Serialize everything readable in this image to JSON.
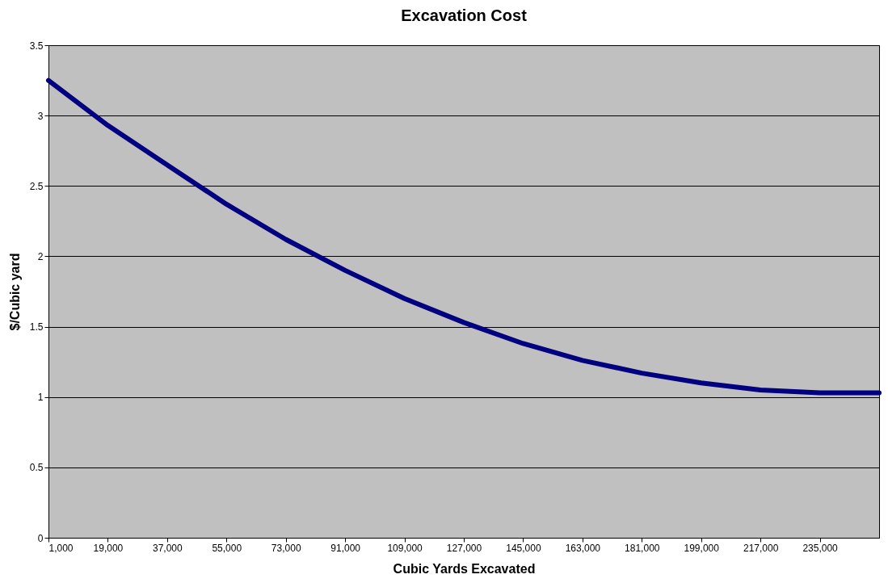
{
  "chart_data": {
    "type": "line",
    "title": "Excavation Cost",
    "xlabel": "Cubic Yards Excavated",
    "ylabel": "$/Cubic yard",
    "x": [
      1000,
      19000,
      37000,
      55000,
      73000,
      91000,
      109000,
      127000,
      145000,
      163000,
      181000,
      199000,
      217000,
      235000,
      253000
    ],
    "series": [
      {
        "color": "#000080",
        "values": [
          3.25,
          2.93,
          2.65,
          2.37,
          2.12,
          1.9,
          1.7,
          1.53,
          1.38,
          1.26,
          1.17,
          1.1,
          1.05,
          1.03,
          1.03
        ]
      }
    ],
    "xlim": [
      1000,
      253000
    ],
    "xticks": [
      {
        "value": 1000,
        "label": "1,000"
      },
      {
        "value": 19000,
        "label": "19,000"
      },
      {
        "value": 37000,
        "label": "37,000"
      },
      {
        "value": 55000,
        "label": "55,000"
      },
      {
        "value": 73000,
        "label": "73,000"
      },
      {
        "value": 91000,
        "label": "91,000"
      },
      {
        "value": 109000,
        "label": "109,000"
      },
      {
        "value": 127000,
        "label": "127,000"
      },
      {
        "value": 145000,
        "label": "145,000"
      },
      {
        "value": 163000,
        "label": "163,000"
      },
      {
        "value": 181000,
        "label": "181,000"
      },
      {
        "value": 199000,
        "label": "199,000"
      },
      {
        "value": 217000,
        "label": "217,000"
      },
      {
        "value": 235000,
        "label": "235,000"
      }
    ],
    "ylim": [
      0,
      3.5
    ],
    "yticks": [
      0,
      0.5,
      1,
      1.5,
      2,
      2.5,
      3,
      3.5
    ],
    "grid": "y",
    "marker": "none",
    "line_style": "solid"
  }
}
